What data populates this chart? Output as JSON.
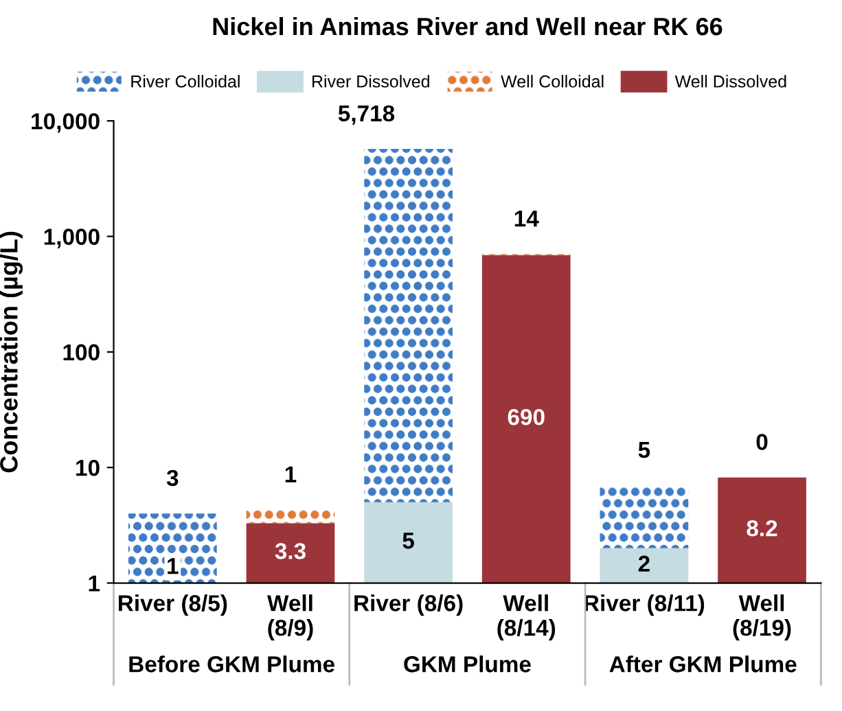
{
  "chart_data": {
    "type": "bar",
    "stacked": true,
    "log": true,
    "title": "Nickel in Animas River and Well near RK 66",
    "ylabel": "Concentration (µg/L)",
    "categories": [
      "River (8/5)",
      "Well (8/9)",
      "River (8/6)",
      "Well (8/14)",
      "River (8/11)",
      "Well (8/19)"
    ],
    "series": [
      {
        "name": "River Dissolved",
        "color": "#c5dce3",
        "values": [
          1,
          null,
          5,
          null,
          2,
          null
        ],
        "value_labels": [
          "1",
          null,
          "5",
          null,
          "2",
          null
        ]
      },
      {
        "name": "River Colloidal",
        "color": "#3f7cc4",
        "values": [
          3,
          null,
          5718,
          null,
          5,
          null
        ],
        "value_labels": [
          "3",
          null,
          "5,718",
          null,
          "5",
          null
        ]
      },
      {
        "name": "Well Dissolved",
        "color": "#9b353a",
        "values": [
          null,
          3.3,
          null,
          690,
          null,
          8.2
        ],
        "value_labels": [
          null,
          "3.3",
          null,
          "690",
          null,
          "8.2"
        ]
      },
      {
        "name": "Well Colloidal",
        "color": "#e07b39",
        "values": [
          null,
          1,
          null,
          14,
          null,
          null
        ],
        "value_labels": [
          null,
          "1",
          null,
          "14",
          null,
          null
        ]
      }
    ],
    "ylim": [
      1,
      10000
    ],
    "yticks": [
      1,
      10,
      100,
      {
        "value": 1000,
        "label": "1,000"
      },
      {
        "value": 10000,
        "label": "10,000"
      }
    ],
    "legend": "top",
    "grid": false,
    "annotations": [
      "Before GKM Plume",
      "GKM Plume",
      "After GKM Plume",
      {
        "text": "0",
        "x": "Well (8/19)",
        "y": 8.2
      }
    ]
  }
}
